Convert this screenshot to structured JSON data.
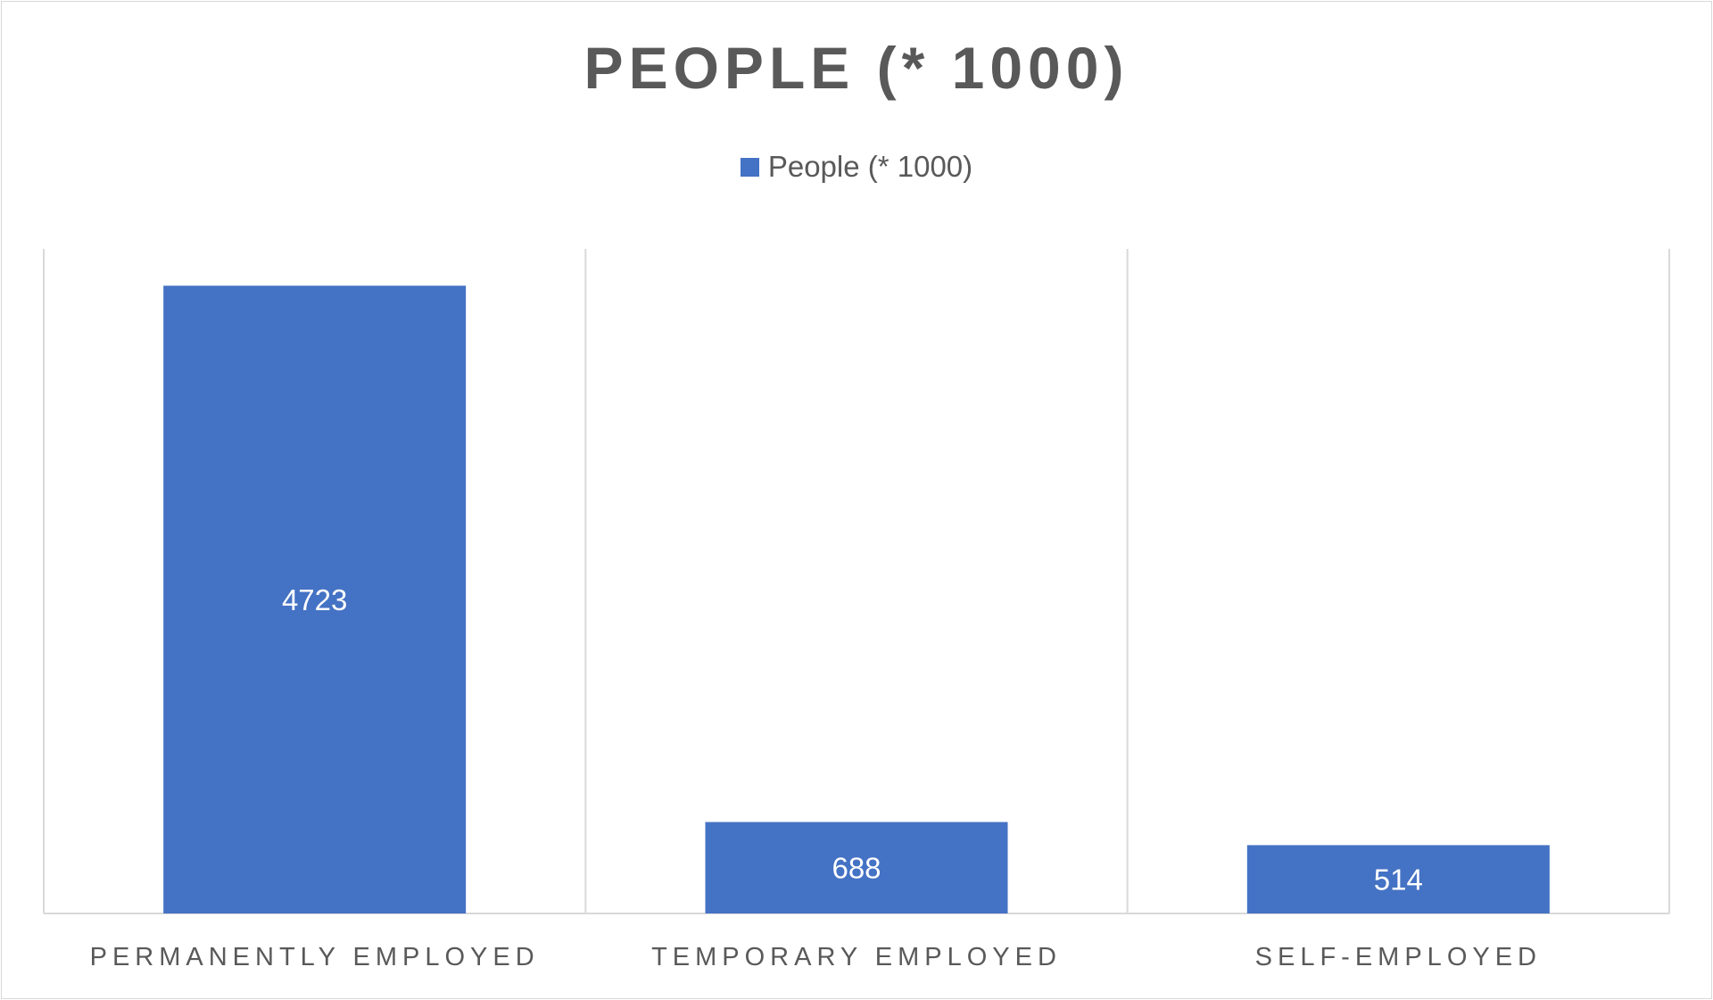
{
  "chart_data": {
    "type": "bar",
    "title": "PEOPLE (* 1000)",
    "legend": {
      "position": "top",
      "entries": [
        "People (* 1000)"
      ]
    },
    "categories": [
      "PERMANENTLY EMPLOYED",
      "TEMPORARY EMPLOYED",
      "SELF-EMPLOYED"
    ],
    "series": [
      {
        "name": "People (* 1000)",
        "values": [
          4723,
          688,
          514
        ],
        "color": "#4472c4"
      }
    ],
    "data_labels": [
      "4723",
      "688",
      "514"
    ],
    "ylim": [
      0,
      5000
    ],
    "grid": "vertical category separators",
    "xlabel": "",
    "ylabel": ""
  }
}
